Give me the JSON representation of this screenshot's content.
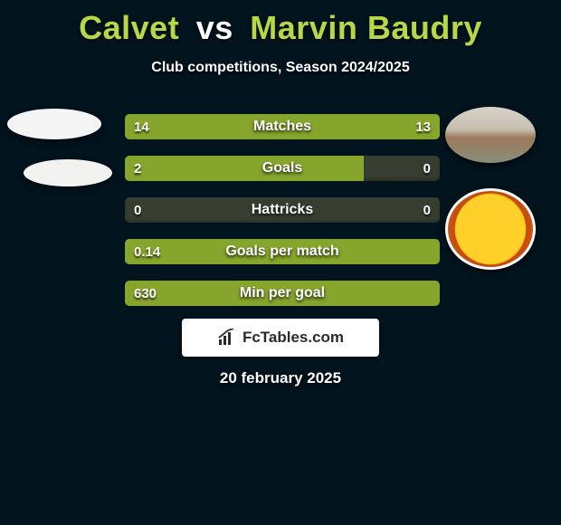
{
  "colors": {
    "background": "#01131d",
    "player1_accent": "#86a52d",
    "player2_accent": "#86a52d",
    "bar_track": "#373e31",
    "text": "#ffffff"
  },
  "title": {
    "player1": "Calvet",
    "vs": "vs",
    "player2": "Marvin Baudry",
    "player1_color": "#b7d648",
    "vs_color": "#ffffff",
    "player2_color": "#b7d648"
  },
  "subtitle": "Club competitions, Season 2024/2025",
  "stats": [
    {
      "label": "Matches",
      "left_value": "14",
      "right_value": "13",
      "left_pct": 52,
      "right_pct": 48,
      "left_color": "#86a52d",
      "right_color": "#86a52d",
      "track_color": "#373e31"
    },
    {
      "label": "Goals",
      "left_value": "2",
      "right_value": "0",
      "left_pct": 76,
      "right_pct": 0,
      "left_color": "#86a52d",
      "right_color": "#86a52d",
      "track_color": "#373e31"
    },
    {
      "label": "Hattricks",
      "left_value": "0",
      "right_value": "0",
      "left_pct": 0,
      "right_pct": 0,
      "left_color": "#86a52d",
      "right_color": "#86a52d",
      "track_color": "#373e31"
    },
    {
      "label": "Goals per match",
      "left_value": "0.14",
      "right_value": "",
      "left_pct": 100,
      "right_pct": 0,
      "left_color": "#86a52d",
      "right_color": "#86a52d",
      "track_color": "#373e31"
    },
    {
      "label": "Min per goal",
      "left_value": "630",
      "right_value": "",
      "left_pct": 100,
      "right_pct": 0,
      "left_color": "#86a52d",
      "right_color": "#86a52d",
      "track_color": "#373e31"
    }
  ],
  "brand": "FcTables.com",
  "date": "20 february 2025"
}
